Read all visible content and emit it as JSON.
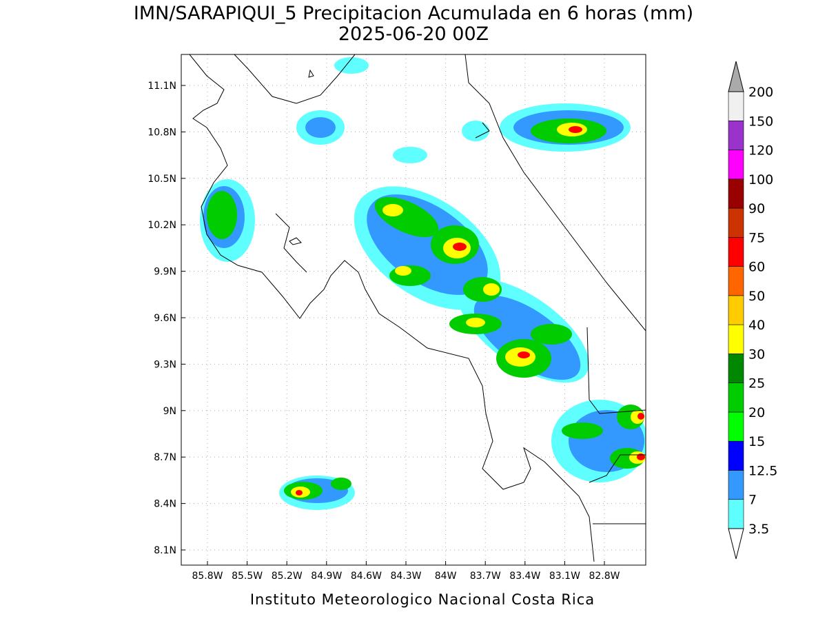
{
  "title": "IMN/SARAPIQUI_5 Precipitacion Acumulada en 6 horas (mm)",
  "subtitle": "2025-06-20 00Z",
  "map": {
    "lon_ticks": [
      "85.8W",
      "85.5W",
      "85.2W",
      "84.9W",
      "84.6W",
      "84.3W",
      "84W",
      "83.7W",
      "83.4W",
      "83.1W",
      "82.8W"
    ],
    "lat_ticks": [
      "11.1N",
      "10.8N",
      "10.5N",
      "10.2N",
      "9.9N",
      "9.6N",
      "9.3N",
      "9N",
      "8.7N",
      "8.4N",
      "8.1N"
    ]
  },
  "colorbar": {
    "labels": [
      "3.5",
      "7",
      "12.5",
      "15",
      "20",
      "25",
      "30",
      "40",
      "50",
      "60",
      "75",
      "90",
      "100",
      "120",
      "150",
      "200"
    ],
    "colors": [
      "#60ffff",
      "#3399ff",
      "#0000ff",
      "#00ff00",
      "#00cc00",
      "#008800",
      "#ffff00",
      "#ffcc00",
      "#ff6600",
      "#ff0000",
      "#cc3300",
      "#990000",
      "#ff00ff",
      "#9933cc",
      "#f0f0f0"
    ]
  },
  "footer": "Instituto Meteorologico Nacional Costa Rica"
}
